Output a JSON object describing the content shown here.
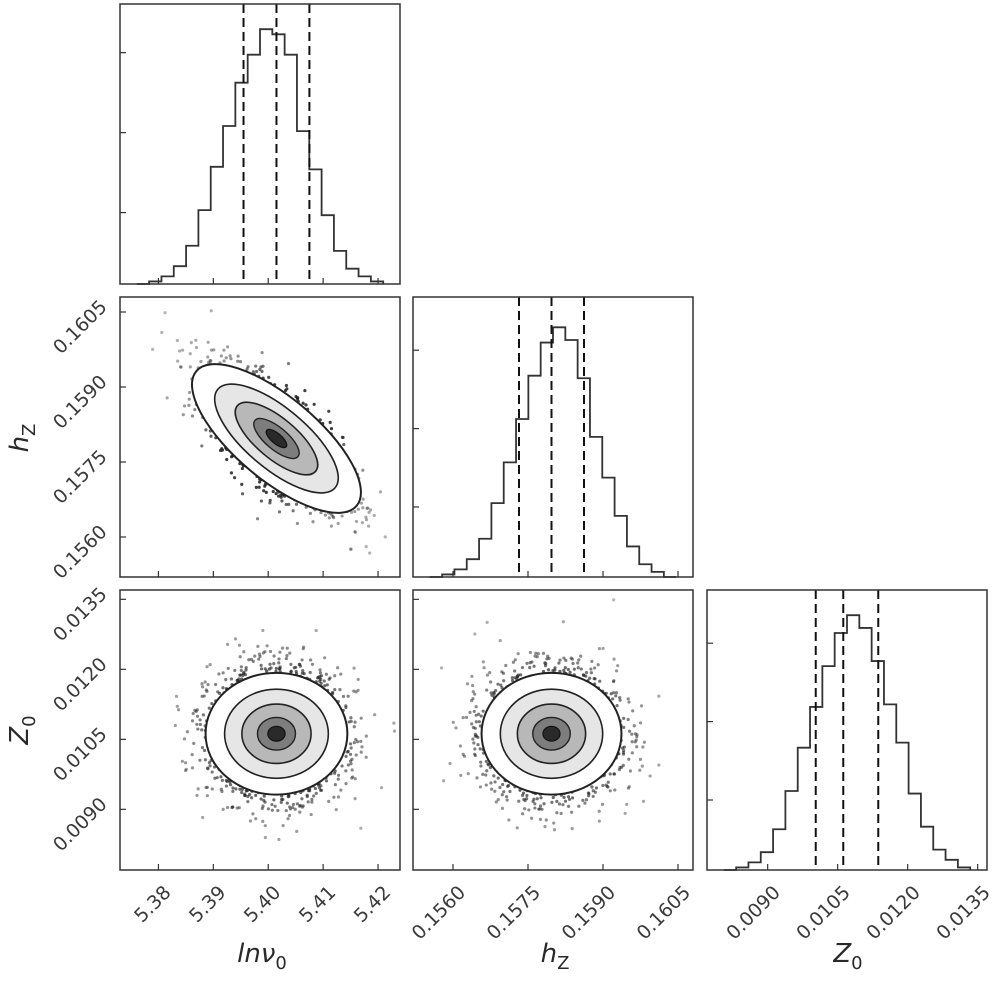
{
  "chart_data": {
    "type": "corner",
    "parameters": [
      {
        "key": "lnnu0",
        "label_main": "lnν",
        "label_sub": "0",
        "range": [
          5.373,
          5.424
        ],
        "ticks": [
          "5.38",
          "5.39",
          "5.40",
          "5.41",
          "5.42"
        ],
        "quantiles": [
          5.3955,
          5.4015,
          5.4075
        ],
        "histogram": [
          0,
          0.01,
          0.03,
          0.07,
          0.15,
          0.29,
          0.46,
          0.62,
          0.79,
          0.9,
          1.0,
          0.98,
          0.9,
          0.6,
          0.45,
          0.27,
          0.13,
          0.06,
          0.03,
          0.01
        ]
      },
      {
        "key": "hz",
        "label_main": "h",
        "label_sub": "Z",
        "range": [
          0.1552,
          0.1608
        ],
        "ticks": [
          "0.1560",
          "0.1575",
          "0.1590",
          "0.1605"
        ],
        "quantiles": [
          0.15732,
          0.15797,
          0.15862
        ],
        "histogram": [
          0,
          0.01,
          0.03,
          0.07,
          0.15,
          0.29,
          0.45,
          0.62,
          0.79,
          0.92,
          0.98,
          0.93,
          0.78,
          0.55,
          0.39,
          0.24,
          0.12,
          0.05,
          0.02,
          0
        ]
      },
      {
        "key": "z0",
        "label_main": "Z",
        "label_sub": "0",
        "range": [
          0.0077,
          0.0137
        ],
        "ticks": [
          "0.0090",
          "0.0105",
          "0.0120",
          "0.0135"
        ],
        "quantiles": [
          0.01003,
          0.01062,
          0.01137
        ],
        "histogram": [
          0,
          0.01,
          0.03,
          0.07,
          0.16,
          0.31,
          0.48,
          0.64,
          0.8,
          0.93,
          1.0,
          0.95,
          0.82,
          0.65,
          0.5,
          0.3,
          0.17,
          0.08,
          0.04,
          0.01
        ]
      }
    ],
    "pairs": [
      {
        "x": "lnnu0",
        "y": "hz",
        "correlation": -0.7
      },
      {
        "x": "lnnu0",
        "y": "z0",
        "correlation": 0.0
      },
      {
        "x": "hz",
        "y": "z0",
        "correlation": 0.0
      }
    ],
    "quantile_line_style": "dashed",
    "contour_levels": 3,
    "grid": false,
    "legend": "none"
  }
}
